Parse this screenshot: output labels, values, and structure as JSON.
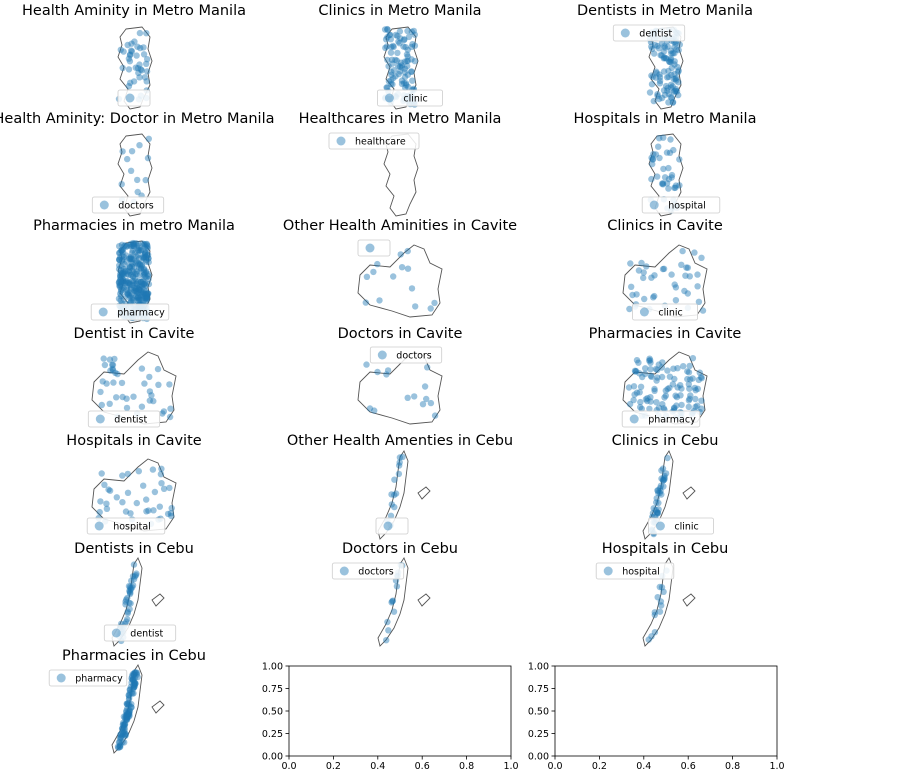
{
  "figure": {
    "point_color": "#1f77b4",
    "outline_color": "#555555"
  },
  "chart_data": [
    {
      "type": "scatter",
      "title": "Health Aminity in Metro Manila",
      "region": "Metro Manila",
      "legend": "",
      "density": "medium"
    },
    {
      "type": "scatter",
      "title": "Clinics in Metro Manila",
      "region": "Metro Manila",
      "legend": "clinic",
      "density": "high"
    },
    {
      "type": "scatter",
      "title": "Dentists in Metro Manila",
      "region": "Metro Manila",
      "legend": "dentist",
      "density": "high"
    },
    {
      "type": "scatter",
      "title": "Health Aminity: Doctor in Metro Manila",
      "region": "Metro Manila",
      "legend": "doctors",
      "density": "low"
    },
    {
      "type": "scatter",
      "title": "Healthcares in Metro Manila",
      "region": "Metro Manila",
      "legend": "healthcare",
      "density": "none"
    },
    {
      "type": "scatter",
      "title": "Hospitals in Metro Manila",
      "region": "Metro Manila",
      "legend": "hospital",
      "density": "medium"
    },
    {
      "type": "scatter",
      "title": "Pharmacies in metro Manila",
      "region": "Metro Manila",
      "legend": "pharmacy",
      "density": "very-high"
    },
    {
      "type": "scatter",
      "title": "Other Health Aminities in Cavite",
      "region": "Cavite",
      "legend": "",
      "density": "low"
    },
    {
      "type": "scatter",
      "title": "Clinics in Cavite",
      "region": "Cavite",
      "legend": "clinic",
      "density": "medium"
    },
    {
      "type": "scatter",
      "title": "Dentist in Cavite",
      "region": "Cavite",
      "legend": "dentist",
      "density": "medium"
    },
    {
      "type": "scatter",
      "title": "Doctors in Cavite",
      "region": "Cavite",
      "legend": "doctors",
      "density": "low"
    },
    {
      "type": "scatter",
      "title": "Pharmacies in Cavite",
      "region": "Cavite",
      "legend": "pharmacy",
      "density": "high"
    },
    {
      "type": "scatter",
      "title": "Hospitals in Cavite",
      "region": "Cavite",
      "legend": "hospital",
      "density": "medium"
    },
    {
      "type": "scatter",
      "title": "Other Health Amenties in Cebu",
      "region": "Cebu",
      "legend": "",
      "density": "low"
    },
    {
      "type": "scatter",
      "title": "Clinics in Cebu",
      "region": "Cebu",
      "legend": "clinic",
      "density": "medium"
    },
    {
      "type": "scatter",
      "title": "Dentists in Cebu",
      "region": "Cebu",
      "legend": "dentist",
      "density": "medium"
    },
    {
      "type": "scatter",
      "title": "Doctors in Cebu",
      "region": "Cebu",
      "legend": "doctors",
      "density": "low"
    },
    {
      "type": "scatter",
      "title": "Hospitals in Cebu",
      "region": "Cebu",
      "legend": "hospital",
      "density": "low"
    },
    {
      "type": "scatter",
      "title": "Pharmacies in Cebu",
      "region": "Cebu",
      "legend": "pharmacy",
      "density": "high"
    },
    {
      "type": "scatter",
      "title": "",
      "xlim": [
        0,
        1
      ],
      "ylim": [
        0,
        1
      ],
      "xticks": [
        "0.0",
        "0.2",
        "0.4",
        "0.6",
        "0.8",
        "1.0"
      ],
      "yticks": [
        "0.00",
        "0.25",
        "0.50",
        "0.75",
        "1.00"
      ],
      "empty": true
    },
    {
      "type": "scatter",
      "title": "",
      "xlim": [
        0,
        1
      ],
      "ylim": [
        0,
        1
      ],
      "xticks": [
        "0.0",
        "0.2",
        "0.4",
        "0.6",
        "0.8",
        "1.0"
      ],
      "yticks": [
        "0.00",
        "0.25",
        "0.50",
        "0.75",
        "1.00"
      ],
      "empty": true
    }
  ]
}
